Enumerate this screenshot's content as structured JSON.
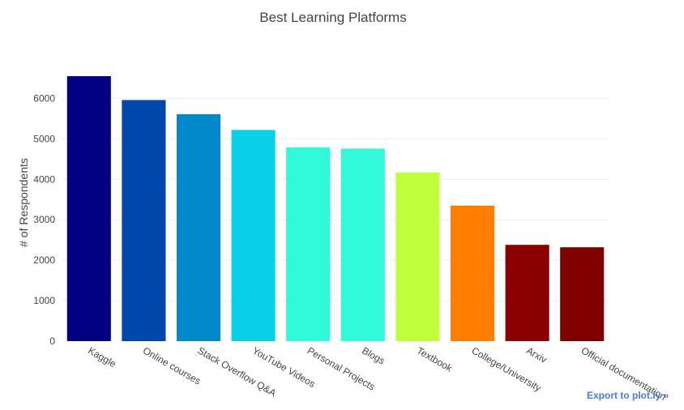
{
  "chart_data": {
    "type": "bar",
    "title": "Best Learning Platforms",
    "xlabel": "",
    "ylabel": "# of Respondents",
    "categories": [
      "Kaggle",
      "Online courses",
      "Stack Overflow Q&A",
      "YouTube Videos",
      "Personal Projects",
      "Blogs",
      "Textbook",
      "College/University",
      "Arxiv",
      "Official documentation"
    ],
    "values": [
      6550,
      5960,
      5610,
      5220,
      4790,
      4760,
      4170,
      3350,
      2380,
      2320
    ],
    "colors": [
      "#000080",
      "#0047ab",
      "#0289cb",
      "#08d0e7",
      "#2ff9d9",
      "#2ff9d9",
      "#bfff3c",
      "#ff7d00",
      "#8b0000",
      "#800000"
    ],
    "ylim": [
      0,
      6550
    ],
    "yticks": [
      0,
      1000,
      2000,
      3000,
      4000,
      5000,
      6000
    ],
    "grid": true,
    "legend": "none"
  },
  "export_link": "Export to plot.ly »"
}
